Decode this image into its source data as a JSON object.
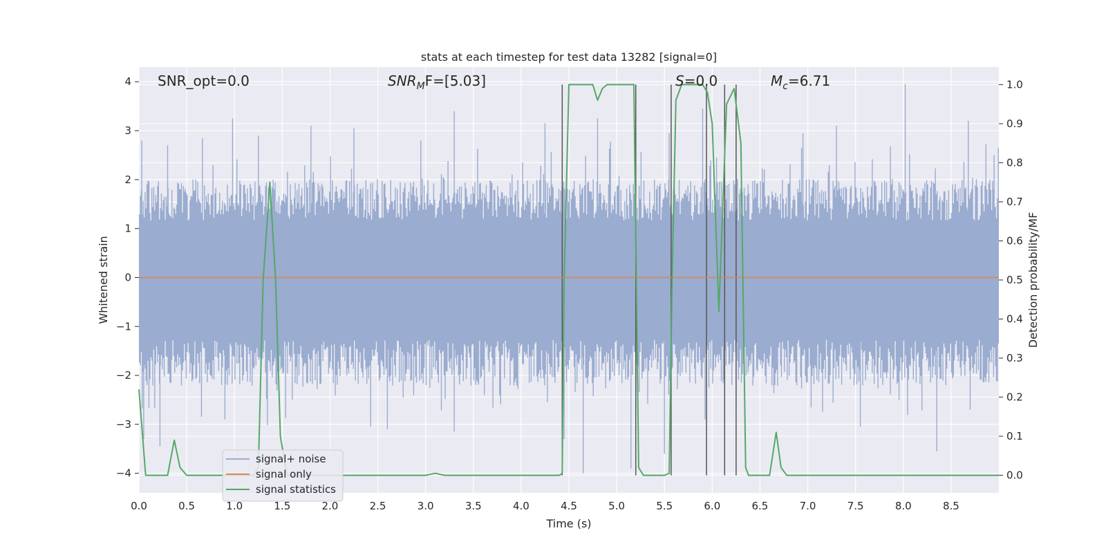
{
  "chart_data": {
    "type": "line",
    "title": "stats at each timestep for test data 13282 [signal=0]",
    "xlabel": "Time (s)",
    "ylabel": "Whitened strain",
    "y2label": "Detection probability/MF",
    "xlim": [
      0,
      9.0
    ],
    "ylim": [
      -4.4,
      4.3
    ],
    "y2lim": [
      -0.045,
      1.045
    ],
    "xticks": [
      0.0,
      0.5,
      1.0,
      1.5,
      2.0,
      2.5,
      3.0,
      3.5,
      4.0,
      4.5,
      5.0,
      5.5,
      6.0,
      6.5,
      7.0,
      7.5,
      8.0,
      8.5
    ],
    "xtick_labels": [
      "0.0",
      "0.5",
      "1.0",
      "1.5",
      "2.0",
      "2.5",
      "3.0",
      "3.5",
      "4.0",
      "4.5",
      "5.0",
      "5.5",
      "6.0",
      "6.5",
      "7.0",
      "7.5",
      "8.0",
      "8.5"
    ],
    "yticks": [
      4,
      3,
      2,
      1,
      0,
      -1,
      -2,
      -3,
      -4
    ],
    "ytick_labels": [
      "4",
      "3",
      "2",
      "1",
      "0",
      "−1",
      "−2",
      "−3",
      "−4"
    ],
    "y2ticks": [
      1.0,
      0.9,
      0.8,
      0.7,
      0.6,
      0.5,
      0.4,
      0.3,
      0.2,
      0.1,
      0.0
    ],
    "y2tick_labels": [
      "1.0",
      "0.9",
      "0.8",
      "0.7",
      "0.6",
      "0.5",
      "0.4",
      "0.3",
      "0.2",
      "0.1",
      "0.0"
    ],
    "grid": true,
    "legend_position": "lower-left",
    "annotations": {
      "snr_opt": "SNR_opt=0.0",
      "snr_mf_main": "SNR",
      "snr_mf_sub": "M",
      "snr_mf_rest": "F=[5.03]",
      "s_main": "S",
      "s_rest": "=0.0",
      "mc_main": "M",
      "mc_sub": "c",
      "mc_rest": "=6.71"
    },
    "series": [
      {
        "name": "signal+ noise",
        "color": "#9aaccf",
        "axis": "left",
        "envelope": {
          "typical_upper": 1.55,
          "typical_lower": -1.7,
          "spikes": [
            [
              0.03,
              2.8
            ],
            [
              0.3,
              2.7
            ],
            [
              0.98,
              3.25
            ],
            [
              1.25,
              2.9
            ],
            [
              1.8,
              3.1
            ],
            [
              2.25,
              3.05
            ],
            [
              2.95,
              2.8
            ],
            [
              3.3,
              3.4
            ],
            [
              4.25,
              3.15
            ],
            [
              4.8,
              3.25
            ],
            [
              5.55,
              2.95
            ],
            [
              5.9,
              3.45
            ],
            [
              6.95,
              2.95
            ],
            [
              7.3,
              3.1
            ],
            [
              8.02,
              3.95
            ],
            [
              8.68,
              3.2
            ],
            [
              8.95,
              2.5
            ]
          ],
          "neg_spikes": [
            [
              0.05,
              -3.3
            ],
            [
              0.22,
              -3.45
            ],
            [
              0.9,
              -2.9
            ],
            [
              2.6,
              -3.1
            ],
            [
              3.3,
              -3.15
            ],
            [
              4.45,
              -3.3
            ],
            [
              4.65,
              -4.0
            ],
            [
              5.15,
              -3.9
            ],
            [
              5.5,
              -3.6
            ],
            [
              7.55,
              -3.05
            ],
            [
              8.35,
              -3.55
            ],
            [
              8.7,
              -2.7
            ]
          ]
        }
      },
      {
        "name": "signal only",
        "color": "#dd8452",
        "axis": "left",
        "x": [
          0,
          9.0
        ],
        "y": [
          0,
          0
        ]
      },
      {
        "name": "signal statistics",
        "color": "#55a868",
        "axis": "right",
        "x": [
          0.0,
          0.07,
          0.15,
          0.3,
          0.37,
          0.43,
          0.5,
          0.6,
          1.2,
          1.25,
          1.3,
          1.37,
          1.43,
          1.48,
          1.55,
          3.0,
          3.1,
          3.2,
          4.4,
          4.43,
          4.45,
          4.5,
          4.75,
          4.8,
          4.85,
          4.9,
          5.1,
          5.18,
          5.23,
          5.28,
          5.5,
          5.55,
          5.58,
          5.62,
          5.68,
          5.9,
          5.95,
          6.0,
          6.07,
          6.15,
          6.23,
          6.3,
          6.35,
          6.38,
          6.43,
          6.6,
          6.67,
          6.72,
          6.78,
          7.0,
          9.0
        ],
        "y": [
          0.22,
          0.0,
          0.0,
          0.0,
          0.09,
          0.02,
          0.0,
          0.0,
          0.0,
          0.02,
          0.5,
          0.75,
          0.5,
          0.1,
          0.0,
          0.0,
          0.005,
          0.0,
          0.0,
          0.005,
          0.5,
          1.0,
          1.0,
          0.96,
          0.99,
          1.0,
          1.0,
          1.0,
          0.02,
          0.0,
          0.0,
          0.005,
          0.5,
          0.96,
          1.0,
          1.0,
          0.98,
          0.9,
          0.42,
          0.95,
          0.99,
          0.85,
          0.02,
          0.0,
          0.0,
          0.0,
          0.11,
          0.02,
          0.0,
          0.0,
          0.0
        ]
      }
    ],
    "vertical_lines": [
      4.43,
      5.2,
      5.57,
      5.94,
      6.13,
      6.25
    ]
  }
}
